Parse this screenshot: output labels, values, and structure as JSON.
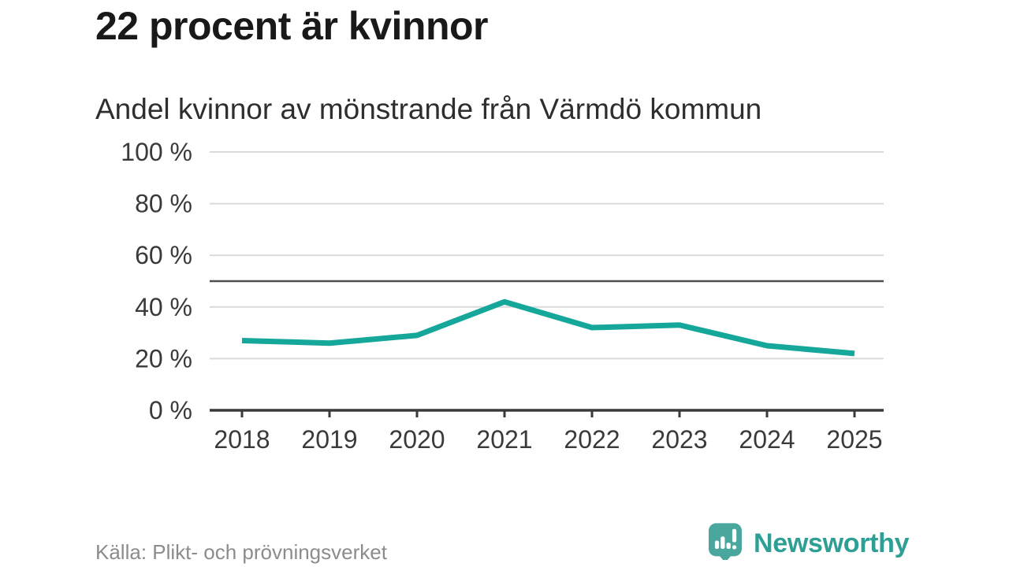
{
  "chart_data": {
    "type": "line",
    "title": "22 procent är kvinnor",
    "subtitle": "Andel kvinnor av mönstrande från Värmdö kommun",
    "x": [
      2018,
      2019,
      2020,
      2021,
      2022,
      2023,
      2024,
      2025
    ],
    "series": [
      {
        "name": "Andel kvinnor av mönstrande",
        "values": [
          27,
          26,
          29,
          42,
          32,
          33,
          25,
          22
        ]
      }
    ],
    "xlabel": "",
    "ylabel": "",
    "ylim": [
      0,
      100
    ],
    "yticks": [
      0,
      20,
      40,
      60,
      80,
      100
    ],
    "ytick_suffix": " %",
    "reference_line": 50,
    "grid": true,
    "legend": "none",
    "line_color": "#16a79b",
    "reference_color": "#4f4f4f",
    "grid_color": "#dadada",
    "axis_color": "#3a3a3a",
    "label_color": "#3a3a3a"
  },
  "footer": {
    "source": "Källa: Plikt- och prövningsverket",
    "brand": "Newsworthy",
    "brand_color": "#2d9f94",
    "logo_color": "#4aa79e"
  }
}
